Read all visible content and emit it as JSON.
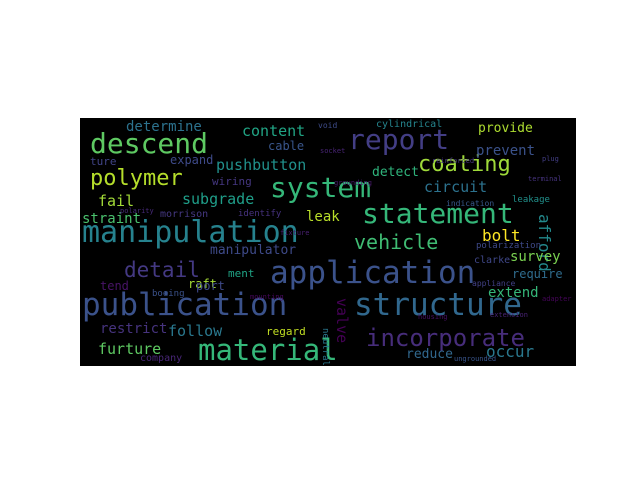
{
  "wordcloud": {
    "background": "#000000",
    "colormap": "viridis",
    "words": [
      {
        "text": "publication",
        "weight": 1.0,
        "color": "#3b528b"
      },
      {
        "text": "structure",
        "weight": 1.0,
        "color": "#31688e"
      },
      {
        "text": "application",
        "weight": 0.98,
        "color": "#3b528b"
      },
      {
        "text": "manipulation",
        "weight": 0.97,
        "color": "#26828e"
      },
      {
        "text": "material",
        "weight": 0.92,
        "color": "#35b779"
      },
      {
        "text": "system",
        "weight": 0.9,
        "color": "#35b779"
      },
      {
        "text": "statement",
        "weight": 0.88,
        "color": "#35b779"
      },
      {
        "text": "report",
        "weight": 0.86,
        "color": "#433e85"
      },
      {
        "text": "descend",
        "weight": 0.85,
        "color": "#5ec962"
      },
      {
        "text": "incorporate",
        "weight": 0.8,
        "color": "#472d7b"
      },
      {
        "text": "coating",
        "weight": 0.72,
        "color": "#9fda3a"
      },
      {
        "text": "polymer",
        "weight": 0.68,
        "color": "#b5de2b"
      },
      {
        "text": "vehicle",
        "weight": 0.66,
        "color": "#3fbc73"
      },
      {
        "text": "detail",
        "weight": 0.64,
        "color": "#443983"
      },
      {
        "text": "pushbutton",
        "weight": 0.5,
        "color": "#21918c"
      },
      {
        "text": "content",
        "weight": 0.48,
        "color": "#21a585"
      },
      {
        "text": "circuit",
        "weight": 0.48,
        "color": "#2c728e"
      },
      {
        "text": "occur",
        "weight": 0.48,
        "color": "#2a788e"
      },
      {
        "text": "bolt",
        "weight": 0.46,
        "color": "#fde725"
      },
      {
        "text": "afford",
        "weight": 0.46,
        "color": "#238a8d"
      },
      {
        "text": "subgrade",
        "weight": 0.44,
        "color": "#1f9e89"
      },
      {
        "text": "furture",
        "weight": 0.44,
        "color": "#5ec962"
      },
      {
        "text": "valve",
        "weight": 0.44,
        "color": "#440154"
      },
      {
        "text": "follow",
        "weight": 0.42,
        "color": "#2a788e"
      },
      {
        "text": "provide",
        "weight": 0.42,
        "color": "#addc30"
      },
      {
        "text": "prevent",
        "weight": 0.42,
        "color": "#3b528b"
      },
      {
        "text": "survey",
        "weight": 0.42,
        "color": "#7ad151"
      },
      {
        "text": "fail",
        "weight": 0.42,
        "color": "#a2da37"
      },
      {
        "text": "straint",
        "weight": 0.4,
        "color": "#4ac16d"
      },
      {
        "text": "leak",
        "weight": 0.4,
        "color": "#b8de29"
      },
      {
        "text": "determine",
        "weight": 0.38,
        "color": "#2c728e"
      },
      {
        "text": "extend",
        "weight": 0.38,
        "color": "#35b779"
      },
      {
        "text": "reduce",
        "weight": 0.38,
        "color": "#31688e"
      },
      {
        "text": "restrict",
        "weight": 0.38,
        "color": "#46337e"
      },
      {
        "text": "manipulator",
        "weight": 0.38,
        "color": "#3e4a89"
      },
      {
        "text": "detect",
        "weight": 0.36,
        "color": "#2fb47c"
      },
      {
        "text": "require",
        "weight": 0.34,
        "color": "#2f6c8e"
      },
      {
        "text": "tend",
        "weight": 0.34,
        "color": "#481467"
      },
      {
        "text": "raft",
        "weight": 0.34,
        "color": "#a5db36"
      },
      {
        "text": "port",
        "weight": 0.34,
        "color": "#3e4989"
      },
      {
        "text": "expand",
        "weight": 0.32,
        "color": "#3e4a89"
      },
      {
        "text": "cable",
        "weight": 0.32,
        "color": "#39568c"
      },
      {
        "text": "regard",
        "weight": 0.3,
        "color": "#c2df23"
      },
      {
        "text": "ment",
        "weight": 0.3,
        "color": "#20a486"
      },
      {
        "text": "wiring",
        "weight": 0.28,
        "color": "#453781"
      },
      {
        "text": "cylindrical",
        "weight": 0.27,
        "color": "#25858e"
      },
      {
        "text": "ture",
        "weight": 0.27,
        "color": "#414487"
      },
      {
        "text": "morrison",
        "weight": 0.26,
        "color": "#453882"
      },
      {
        "text": "clarke",
        "weight": 0.26,
        "color": "#3f4788"
      },
      {
        "text": "company",
        "weight": 0.26,
        "color": "#482677"
      },
      {
        "text": "identify",
        "weight": 0.24,
        "color": "#46327e"
      },
      {
        "text": "boeing",
        "weight": 0.24,
        "color": "#3b528b"
      },
      {
        "text": "neutral",
        "weight": 0.24,
        "color": "#2a788e"
      },
      {
        "text": "leakage",
        "weight": 0.24,
        "color": "#21918c"
      },
      {
        "text": "appliance",
        "weight": 0.22,
        "color": "#424086"
      },
      {
        "text": "indication",
        "weight": 0.22,
        "color": "#38598c"
      },
      {
        "text": "polarization",
        "weight": 0.22,
        "color": "#3e4989"
      },
      {
        "text": "ungrounded",
        "weight": 0.2,
        "color": "#39558c"
      },
      {
        "text": "void",
        "weight": 0.2,
        "color": "#3e4c8a"
      },
      {
        "text": "polarity",
        "weight": 0.18,
        "color": "#472a7a"
      },
      {
        "text": "extension",
        "weight": 0.18,
        "color": "#482374"
      },
      {
        "text": "reinforced",
        "weight": 0.16,
        "color": "#453781"
      },
      {
        "text": "plug",
        "weight": 0.16,
        "color": "#433e85"
      },
      {
        "text": "terminal",
        "weight": 0.16,
        "color": "#46337e"
      },
      {
        "text": "socket",
        "weight": 0.16,
        "color": "#482475"
      },
      {
        "text": "grounding",
        "weight": 0.16,
        "color": "#481b6d"
      },
      {
        "text": "fixture",
        "weight": 0.15,
        "color": "#482071"
      },
      {
        "text": "housing",
        "weight": 0.15,
        "color": "#471063"
      },
      {
        "text": "mounting",
        "weight": 0.15,
        "color": "#46085c"
      },
      {
        "text": "adapter",
        "weight": 0.14,
        "color": "#450559"
      }
    ]
  }
}
